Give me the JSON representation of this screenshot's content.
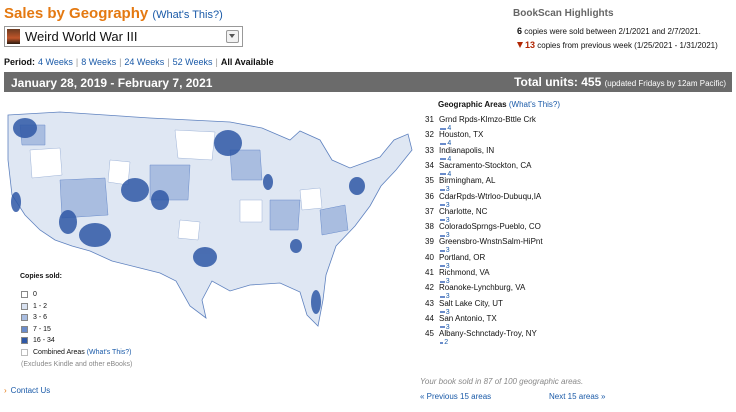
{
  "header": {
    "title": "Sales by Geography",
    "whats_this": "(What's This?)"
  },
  "book_selector": {
    "selected": "Weird World War III"
  },
  "period": {
    "label": "Period:",
    "options": [
      {
        "label": "4 Weeks",
        "selected": false
      },
      {
        "label": "8 Weeks",
        "selected": false
      },
      {
        "label": "24 Weeks",
        "selected": false
      },
      {
        "label": "52 Weeks",
        "selected": false
      },
      {
        "label": "All Available",
        "selected": true
      }
    ]
  },
  "highlights": {
    "title": "BookScan Highlights",
    "week_count": 6,
    "week_text": "copies were sold between 2/1/2021 and 2/7/2021.",
    "change_count": 13,
    "change_text": "copies from previous week (1/25/2021 - 1/31/2021)"
  },
  "summary": {
    "date_range": "January 28, 2019 - February 7, 2021",
    "total_label": "Total units:",
    "total_units": 455,
    "update_note": "(updated Fridays by 12am Pacific)"
  },
  "geo": {
    "title": "Geographic Areas",
    "whats_this": "(What's This?)",
    "areas": [
      {
        "rank": 31,
        "name": "Grnd Rpds-Klmzo-Bttle Crk",
        "copies": 4
      },
      {
        "rank": 32,
        "name": "Houston, TX",
        "copies": 4
      },
      {
        "rank": 33,
        "name": "Indianapolis, IN",
        "copies": 4
      },
      {
        "rank": 34,
        "name": "Sacramento-Stockton, CA",
        "copies": 4
      },
      {
        "rank": 35,
        "name": "Birmingham, AL",
        "copies": 3
      },
      {
        "rank": 36,
        "name": "CdarRpds-Wtrloo-Dubuqu,IA",
        "copies": 3
      },
      {
        "rank": 37,
        "name": "Charlotte, NC",
        "copies": 3
      },
      {
        "rank": 38,
        "name": "ColoradoSprngs-Pueblo, CO",
        "copies": 3
      },
      {
        "rank": 39,
        "name": "Greensbro-WnstnSalm-HiPnt",
        "copies": 3
      },
      {
        "rank": 40,
        "name": "Portland, OR",
        "copies": 3
      },
      {
        "rank": 41,
        "name": "Richmond, VA",
        "copies": 3
      },
      {
        "rank": 42,
        "name": "Roanoke-Lynchburg, VA",
        "copies": 3
      },
      {
        "rank": 43,
        "name": "Salt Lake City, UT",
        "copies": 3
      },
      {
        "rank": 44,
        "name": "San Antonio, TX",
        "copies": 3
      },
      {
        "rank": 45,
        "name": "Albany-Schnctady-Troy, NY",
        "copies": 2
      }
    ],
    "summary_text": "Your book sold in 87 of 100 geographic areas.",
    "previous": "« Previous 15 areas",
    "next": "Next 15 areas »"
  },
  "legend": {
    "title": "Copies sold:",
    "items": [
      {
        "label": "0",
        "color": "#ffffff"
      },
      {
        "label": "1 - 2",
        "color": "#d9e2f1"
      },
      {
        "label": "3 - 6",
        "color": "#a9bde0"
      },
      {
        "label": "7 - 15",
        "color": "#6a8ccb"
      },
      {
        "label": "16 - 34",
        "color": "#2f58a6"
      }
    ],
    "combined": "Combined Areas",
    "combined_link": "(What's This?)",
    "note": "(Excludes Kindle and other eBooks)"
  },
  "footer": {
    "bullet": "›",
    "contact": "Contact Us"
  }
}
